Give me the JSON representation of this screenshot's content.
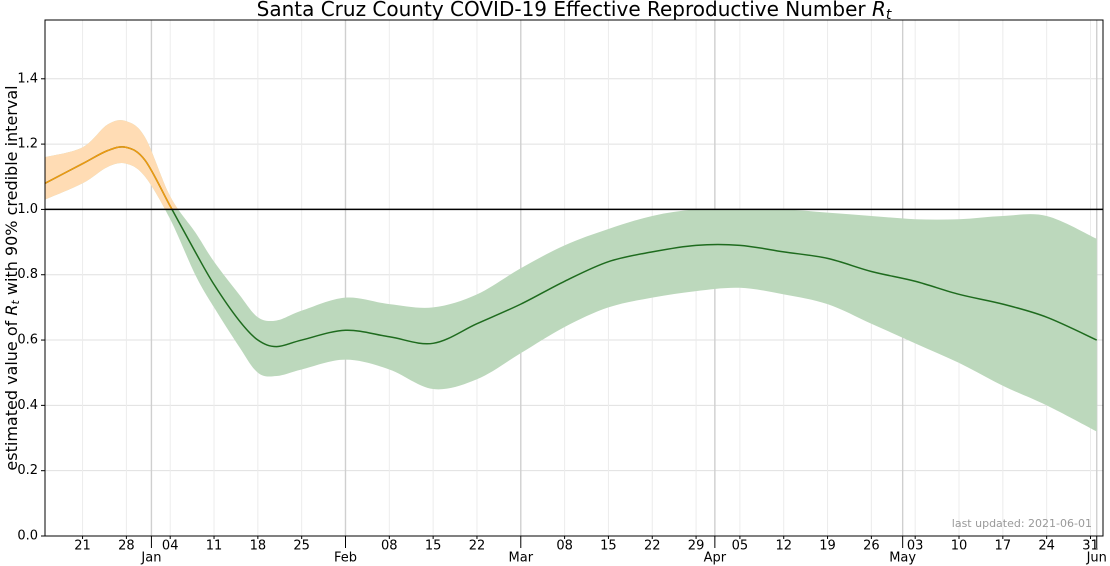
{
  "chart_data": {
    "type": "line",
    "title": "Santa Cruz County COVID-19 Effective Reproductive Number ",
    "title_symbol": "R",
    "title_subscript": "t",
    "ylabel_before": "estimated value of ",
    "ylabel_symbol": "R",
    "ylabel_subscript": "t",
    "ylabel_after": " with 90% credible interval",
    "annotation": "last updated: 2021-06-01",
    "x": [
      "12-15",
      "12-21",
      "12-25",
      "12-28",
      "12-31",
      "01-04",
      "01-08",
      "01-11",
      "01-15",
      "01-18",
      "01-21",
      "01-25",
      "02-01",
      "02-08",
      "02-15",
      "02-22",
      "03-01",
      "03-08",
      "03-15",
      "03-22",
      "03-29",
      "04-05",
      "04-12",
      "04-19",
      "04-26",
      "05-03",
      "05-10",
      "05-17",
      "05-24",
      "06-01"
    ],
    "values": [
      1.08,
      1.14,
      1.18,
      1.19,
      1.15,
      1.01,
      0.87,
      0.77,
      0.66,
      0.6,
      0.58,
      0.6,
      0.63,
      0.61,
      0.59,
      0.65,
      0.71,
      0.78,
      0.84,
      0.87,
      0.89,
      0.89,
      0.87,
      0.85,
      0.81,
      0.78,
      0.74,
      0.71,
      0.67,
      0.6
    ],
    "lower": [
      1.03,
      1.08,
      1.13,
      1.14,
      1.1,
      0.97,
      0.8,
      0.7,
      0.58,
      0.5,
      0.49,
      0.51,
      0.54,
      0.51,
      0.45,
      0.48,
      0.56,
      0.64,
      0.7,
      0.73,
      0.75,
      0.76,
      0.74,
      0.71,
      0.65,
      0.59,
      0.53,
      0.46,
      0.4,
      0.32
    ],
    "upper": [
      1.16,
      1.19,
      1.26,
      1.27,
      1.22,
      1.04,
      0.93,
      0.84,
      0.74,
      0.67,
      0.66,
      0.69,
      0.73,
      0.71,
      0.7,
      0.74,
      0.82,
      0.89,
      0.94,
      0.98,
      1.0,
      1.0,
      1.0,
      0.99,
      0.98,
      0.97,
      0.97,
      0.98,
      0.98,
      0.91
    ],
    "color_below": "#1e6b1e",
    "color_above": "#f0980f",
    "band_color_below": "#bcd8bc",
    "band_color_above": "#ffdcb4",
    "reference_line": 1,
    "xlim": [
      "12-15",
      "06-02"
    ],
    "xticks": [
      {
        "value": "12-21",
        "label": "21"
      },
      {
        "value": "12-28",
        "label": "28"
      },
      {
        "value": "01-04",
        "label": "04"
      },
      {
        "value": "01-11",
        "label": "11"
      },
      {
        "value": "01-18",
        "label": "18"
      },
      {
        "value": "01-25",
        "label": "25"
      },
      {
        "value": "02-08",
        "label": "08"
      },
      {
        "value": "02-15",
        "label": "15"
      },
      {
        "value": "02-22",
        "label": "22"
      },
      {
        "value": "03-08",
        "label": "08"
      },
      {
        "value": "03-15",
        "label": "15"
      },
      {
        "value": "03-22",
        "label": "22"
      },
      {
        "value": "03-29",
        "label": "29"
      },
      {
        "value": "04-05",
        "label": "05"
      },
      {
        "value": "04-12",
        "label": "12"
      },
      {
        "value": "04-19",
        "label": "19"
      },
      {
        "value": "04-26",
        "label": "26"
      },
      {
        "value": "05-03",
        "label": "03"
      },
      {
        "value": "05-10",
        "label": "10"
      },
      {
        "value": "05-17",
        "label": "17"
      },
      {
        "value": "05-24",
        "label": "24"
      },
      {
        "value": "05-31",
        "label": "31"
      }
    ],
    "month_ticks": [
      {
        "value": "01-01",
        "label": "Jan"
      },
      {
        "value": "02-01",
        "label": "Feb"
      },
      {
        "value": "03-01",
        "label": "Mar"
      },
      {
        "value": "04-01",
        "label": "Apr"
      },
      {
        "value": "05-01",
        "label": "May"
      },
      {
        "value": "06-01",
        "label": "Jun"
      }
    ],
    "ylim": [
      0,
      1.58
    ],
    "yticks": [
      {
        "value": 0,
        "label": "0.0"
      },
      {
        "value": 0.2,
        "label": "0.2"
      },
      {
        "value": 0.4,
        "label": "0.4"
      },
      {
        "value": 0.6,
        "label": "0.6"
      },
      {
        "value": 0.8,
        "label": "0.8"
      },
      {
        "value": 1.0,
        "label": "1.0"
      },
      {
        "value": 1.2,
        "label": "1.2"
      },
      {
        "value": 1.4,
        "label": "1.4"
      }
    ],
    "grid": true
  }
}
